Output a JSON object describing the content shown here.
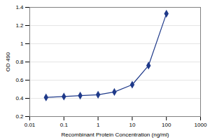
{
  "chart_data": {
    "type": "line",
    "x": [
      0.03,
      0.1,
      0.3,
      1,
      3,
      10,
      30,
      100
    ],
    "values": [
      0.41,
      0.42,
      0.43,
      0.44,
      0.47,
      0.55,
      0.76,
      1.33
    ],
    "color": "#1f3a8a",
    "marker": "diamond",
    "log": "x",
    "grid": true,
    "xlim": [
      0.01,
      1000
    ],
    "xticks": [
      0.01,
      0.1,
      1,
      10,
      100,
      1000
    ],
    "ylim": [
      0.2,
      1.4
    ],
    "yticks": [
      0.2,
      0.4,
      0.6,
      0.8,
      1,
      1.2,
      1.4
    ],
    "xlabel": "Recombinant Protein Concentration (ng/ml)",
    "ylabel": "OD 490"
  }
}
